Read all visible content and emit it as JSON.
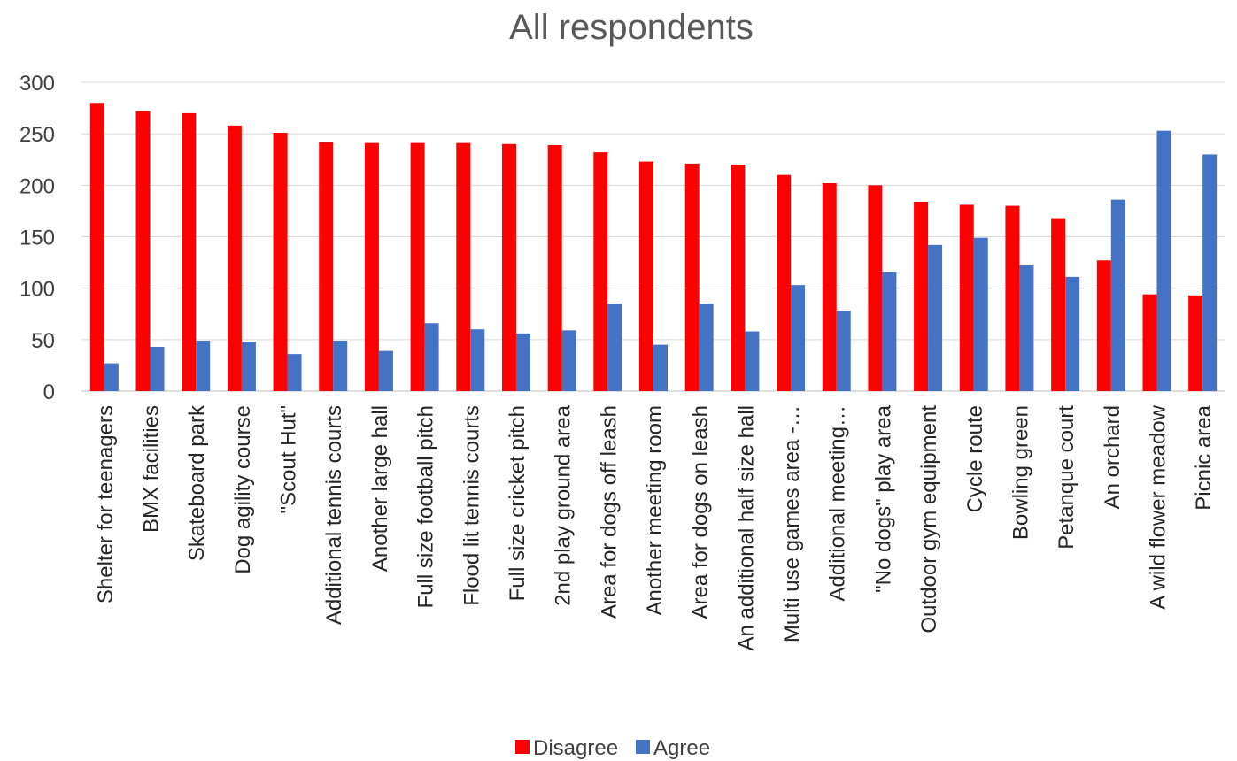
{
  "chart_data": {
    "type": "bar",
    "title": "All respondents",
    "xlabel": "",
    "ylabel": "",
    "ylim": [
      0,
      300
    ],
    "yticks": [
      0,
      50,
      100,
      150,
      200,
      250,
      300
    ],
    "grid": true,
    "legend_position": "bottom",
    "categories": [
      "Shelter for teenagers",
      "BMX facilities",
      "Skateboard park",
      "Dog agility course",
      "\"Scout Hut\"",
      "Additional tennis courts",
      "Another large hall",
      "Full size football pitch",
      "Flood lit tennis courts",
      "Full size cricket pitch",
      "2nd play ground area",
      "Area for dogs off leash",
      "Another meeting room",
      "Area for dogs on leash",
      "An additional half size hall",
      "Multi use games area -…",
      "Additional meeting…",
      "\"No dogs\" play area",
      "Outdoor gym equipment",
      "Cycle route",
      "Bowling green",
      "Petanque court",
      "An orchard",
      "A wild flower meadow",
      "Picnic area"
    ],
    "series": [
      {
        "name": "Disagree",
        "color": "#FF0000",
        "values": [
          280,
          272,
          270,
          258,
          251,
          242,
          241,
          241,
          241,
          240,
          239,
          232,
          223,
          221,
          220,
          210,
          202,
          200,
          184,
          181,
          180,
          168,
          127,
          94,
          93
        ]
      },
      {
        "name": "Agree",
        "color": "#4472C4",
        "values": [
          27,
          43,
          49,
          48,
          36,
          49,
          39,
          66,
          60,
          56,
          59,
          85,
          45,
          85,
          58,
          103,
          78,
          116,
          142,
          149,
          122,
          111,
          186,
          253,
          230
        ]
      }
    ]
  }
}
